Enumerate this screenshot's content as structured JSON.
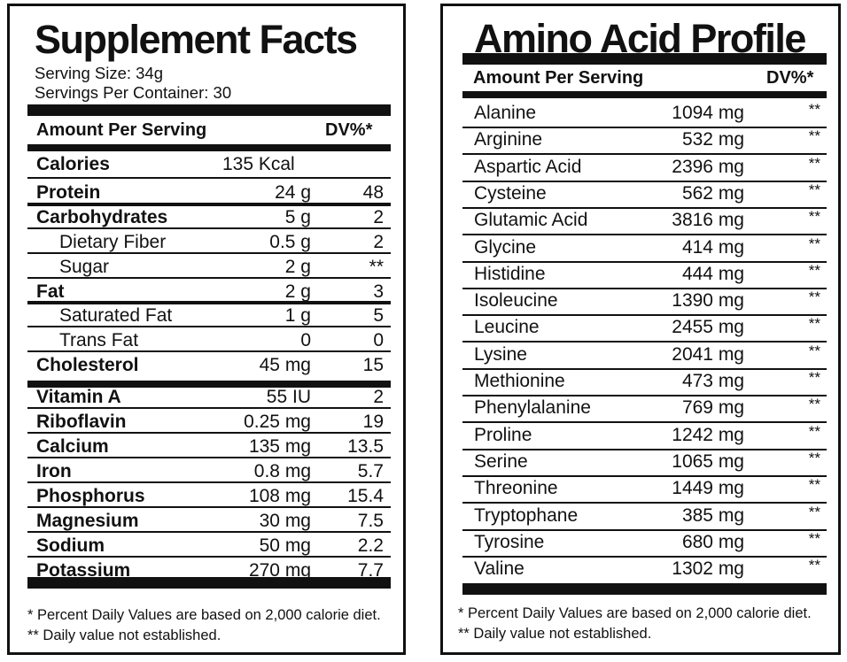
{
  "supplement": {
    "title": "Supplement Facts",
    "serving_size": "Serving Size: 34g",
    "servings_per_container": "Servings Per Container: 30",
    "header": {
      "amount": "Amount Per Serving",
      "dv": "DV%*"
    },
    "rows": [
      {
        "name": "Calories",
        "amount": "135 Kcal",
        "dv": "",
        "bold": true,
        "indent": false
      },
      {
        "name": "Protein",
        "amount": "24 g",
        "dv": "48",
        "bold": true,
        "indent": false
      },
      {
        "name": "Carbohydrates",
        "amount": "5 g",
        "dv": "2",
        "bold": true,
        "indent": false
      },
      {
        "name": "Dietary Fiber",
        "amount": "0.5 g",
        "dv": "2",
        "bold": false,
        "indent": true
      },
      {
        "name": "Sugar",
        "amount": "2 g",
        "dv": "**",
        "bold": false,
        "indent": true
      },
      {
        "name": "Fat",
        "amount": "2 g",
        "dv": "3",
        "bold": true,
        "indent": false
      },
      {
        "name": "Saturated Fat",
        "amount": "1 g",
        "dv": "5",
        "bold": false,
        "indent": true
      },
      {
        "name": "Trans Fat",
        "amount": "0",
        "dv": "0",
        "bold": false,
        "indent": true
      },
      {
        "name": "Cholesterol",
        "amount": "45 mg",
        "dv": "15",
        "bold": true,
        "indent": false
      },
      {
        "name": "Vitamin A",
        "amount": "55 IU",
        "dv": "2",
        "bold": true,
        "indent": false
      },
      {
        "name": "Riboflavin",
        "amount": "0.25 mg",
        "dv": "19",
        "bold": true,
        "indent": false
      },
      {
        "name": "Calcium",
        "amount": "135 mg",
        "dv": "13.5",
        "bold": true,
        "indent": false
      },
      {
        "name": "Iron",
        "amount": "0.8 mg",
        "dv": "5.7",
        "bold": true,
        "indent": false
      },
      {
        "name": "Phosphorus",
        "amount": "108 mg",
        "dv": "15.4",
        "bold": true,
        "indent": false
      },
      {
        "name": "Magnesium",
        "amount": "30 mg",
        "dv": "7.5",
        "bold": true,
        "indent": false
      },
      {
        "name": "Sodium",
        "amount": "50 mg",
        "dv": "2.2",
        "bold": true,
        "indent": false
      },
      {
        "name": "Potassium",
        "amount": "270 mg",
        "dv": "7.7",
        "bold": true,
        "indent": false
      }
    ],
    "footnote1": "* Percent Daily Values are based on 2,000 calorie diet.",
    "footnote2": "** Daily value not established."
  },
  "amino": {
    "title": "Amino Acid Profile",
    "header": {
      "amount": "Amount Per Serving",
      "dv": "DV%*"
    },
    "rows": [
      {
        "name": "Alanine",
        "amount": "1094 mg",
        "dv": "**"
      },
      {
        "name": "Arginine",
        "amount": "532 mg",
        "dv": "**"
      },
      {
        "name": "Aspartic Acid",
        "amount": "2396 mg",
        "dv": "**"
      },
      {
        "name": "Cysteine",
        "amount": "562 mg",
        "dv": "**"
      },
      {
        "name": "Glutamic Acid",
        "amount": "3816 mg",
        "dv": "**"
      },
      {
        "name": "Glycine",
        "amount": "414 mg",
        "dv": "**"
      },
      {
        "name": "Histidine",
        "amount": "444 mg",
        "dv": "**"
      },
      {
        "name": "Isoleucine",
        "amount": "1390 mg",
        "dv": "**"
      },
      {
        "name": "Leucine",
        "amount": "2455 mg",
        "dv": "**"
      },
      {
        "name": "Lysine",
        "amount": "2041 mg",
        "dv": "**"
      },
      {
        "name": "Methionine",
        "amount": "473 mg",
        "dv": "**"
      },
      {
        "name": "Phenylalanine",
        "amount": "769 mg",
        "dv": "**"
      },
      {
        "name": "Proline",
        "amount": "1242 mg",
        "dv": "**"
      },
      {
        "name": "Serine",
        "amount": "1065 mg",
        "dv": "**"
      },
      {
        "name": "Threonine",
        "amount": "1449 mg",
        "dv": "**"
      },
      {
        "name": "Tryptophane",
        "amount": "385 mg",
        "dv": "**"
      },
      {
        "name": "Tyrosine",
        "amount": "680 mg",
        "dv": "**"
      },
      {
        "name": "Valine",
        "amount": "1302 mg",
        "dv": "**"
      }
    ],
    "footnote1": "* Percent Daily Values are based on 2,000 calorie diet.",
    "footnote2": "** Daily value not established."
  }
}
